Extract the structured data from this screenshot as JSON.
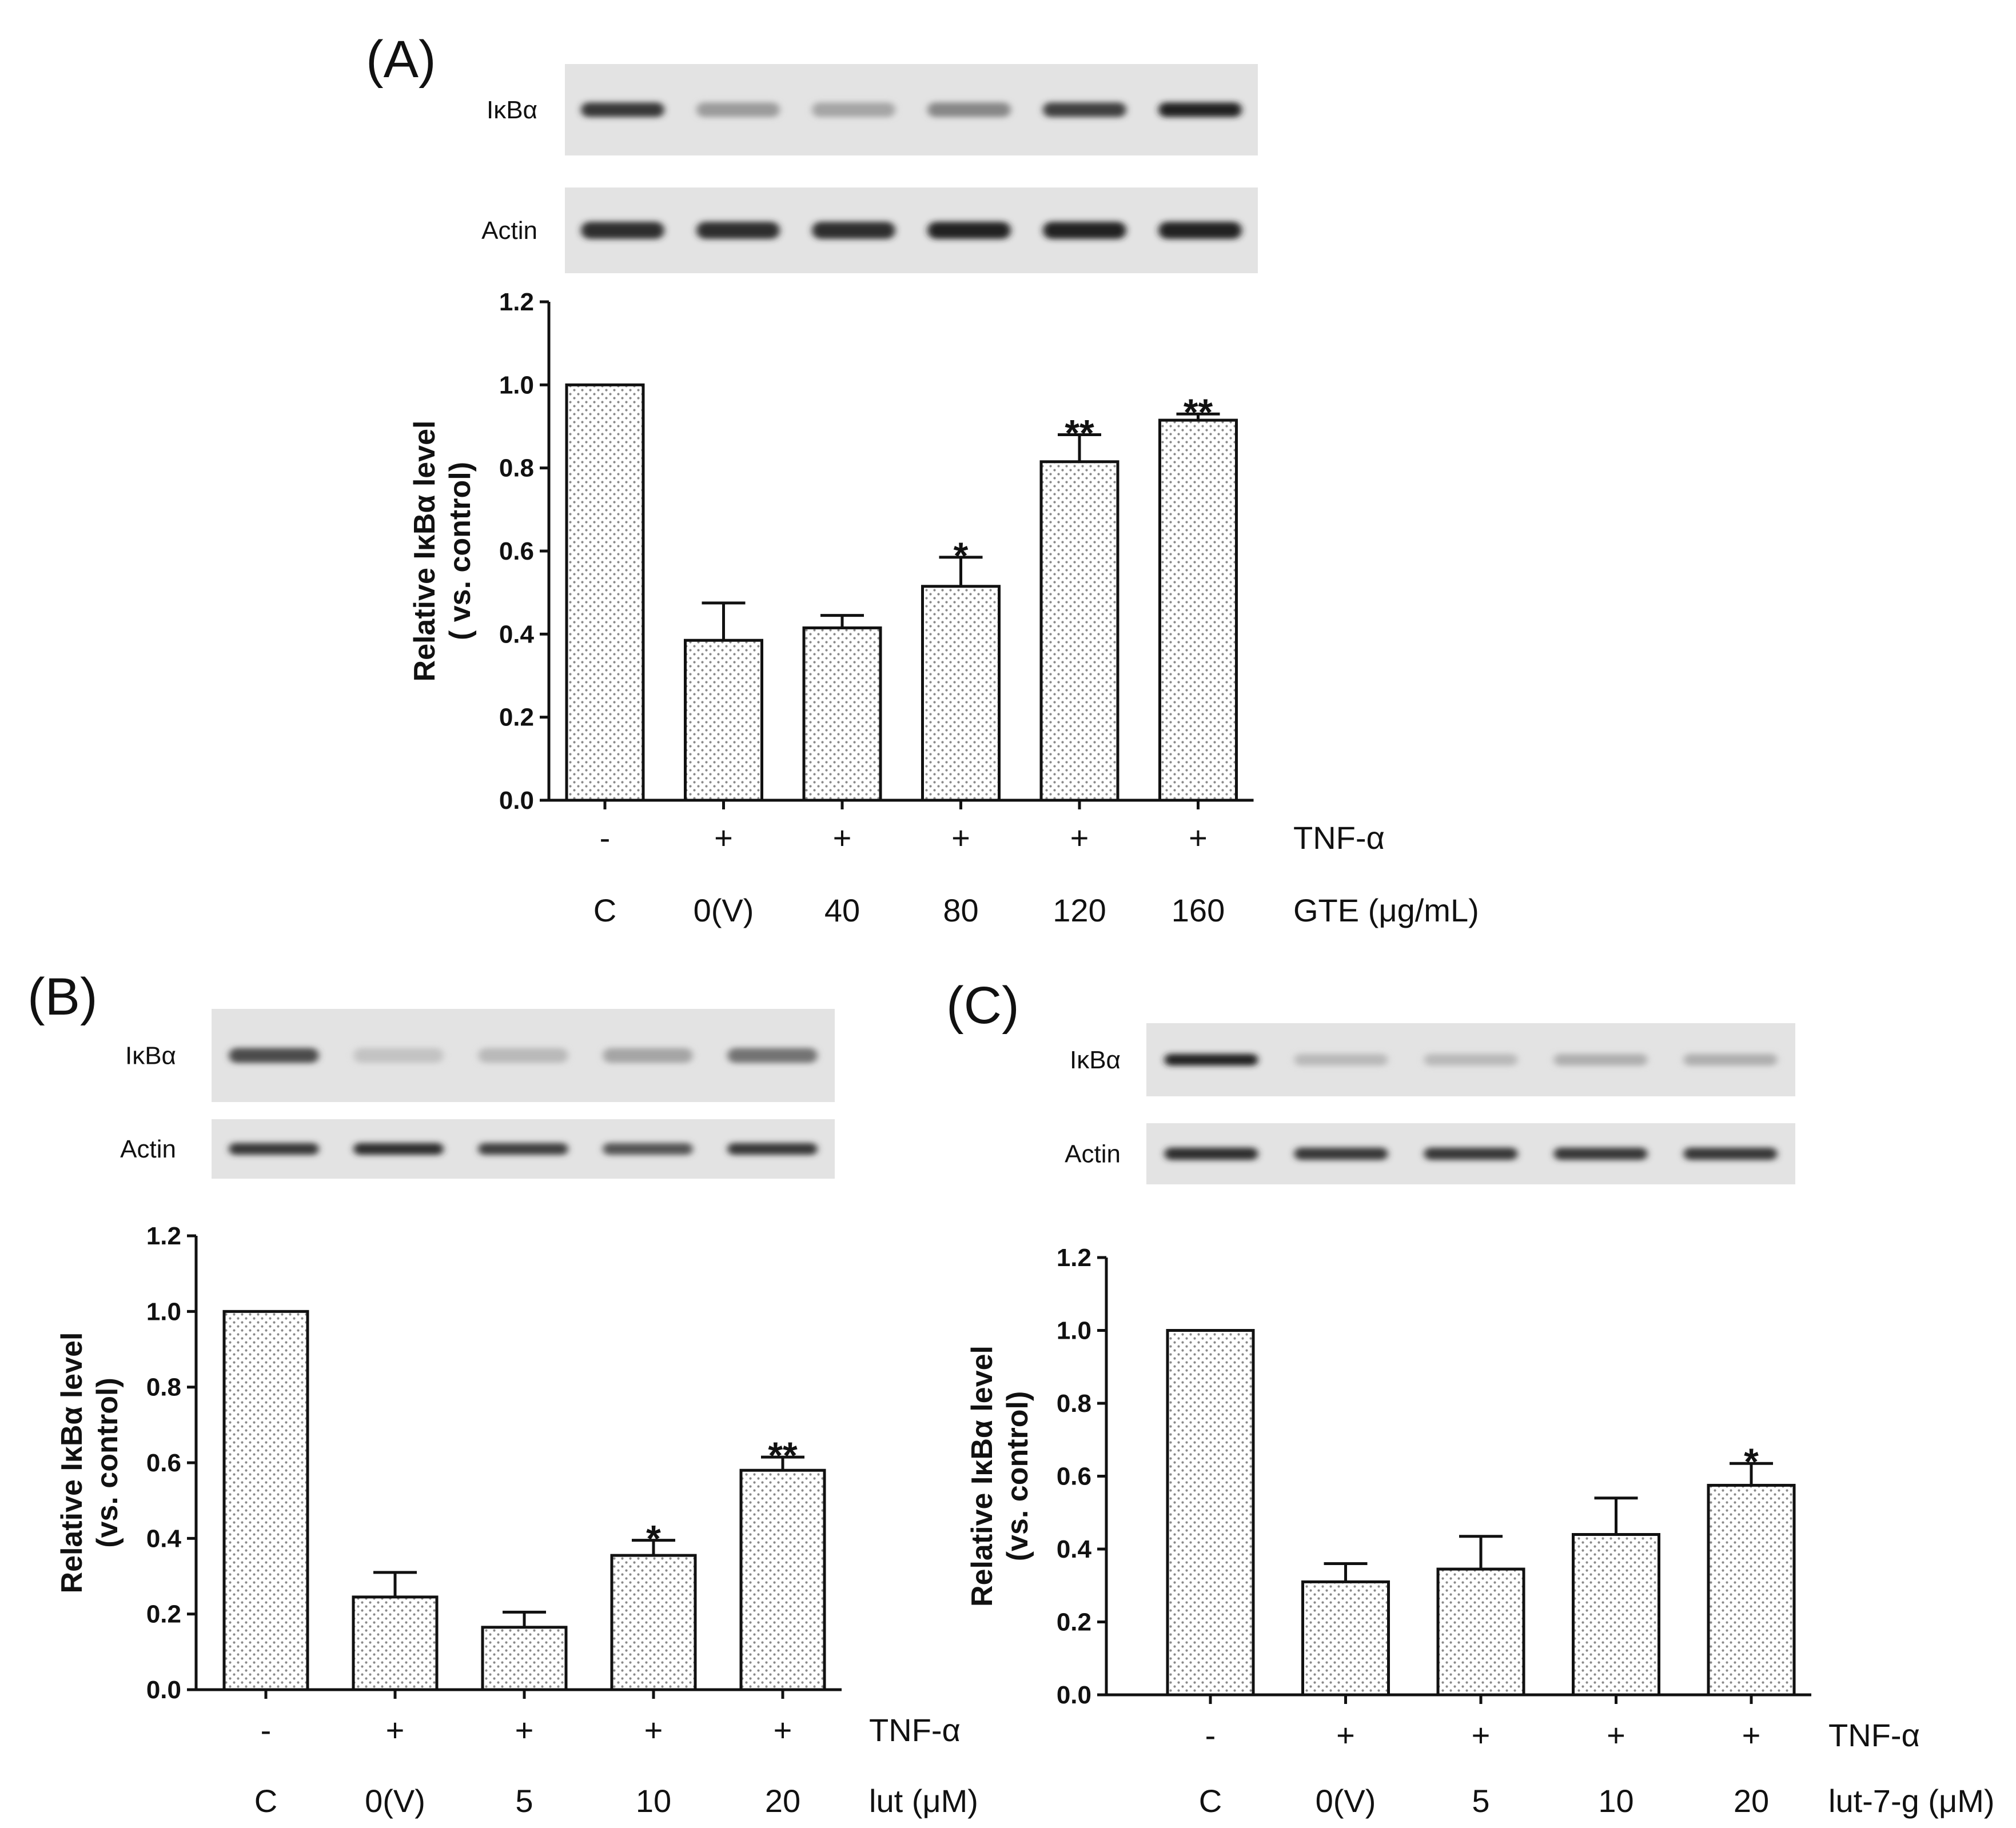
{
  "chart_data": [
    {
      "panel": "(A)",
      "type": "bar",
      "blots": {
        "top": "IκBα",
        "bottom": "Actin"
      },
      "ylabel_line1": "Relative IκBα level",
      "ylabel_line2": "( vs. control)",
      "ylim": [
        0,
        1.2
      ],
      "yticks": [
        "0.0",
        "0.2",
        "0.4",
        "0.6",
        "0.8",
        "1.0",
        "1.2"
      ],
      "tnf_label": "TNF-α",
      "tnf_row": [
        "-",
        "+",
        "+",
        "+",
        "+",
        "+"
      ],
      "treatment_label": "GTE (μg/mL)",
      "categories": [
        "C",
        "0(V)",
        "40",
        "80",
        "120",
        "160"
      ],
      "values": [
        1.0,
        0.385,
        0.415,
        0.515,
        0.815,
        0.915
      ],
      "errors": [
        0,
        0.09,
        0.03,
        0.07,
        0.065,
        0.015
      ],
      "significance": [
        "",
        "",
        "",
        "*",
        "**",
        "**"
      ],
      "blot_intensity_top": [
        0.85,
        0.35,
        0.3,
        0.45,
        0.8,
        0.95
      ],
      "blot_intensity_bottom": [
        0.9,
        0.9,
        0.9,
        0.95,
        0.95,
        0.95
      ]
    },
    {
      "panel": "(B)",
      "type": "bar",
      "blots": {
        "top": "IκBα",
        "bottom": "Actin"
      },
      "ylabel_line1": "Relative IκBα level",
      "ylabel_line2": "(vs. control)",
      "ylim": [
        0,
        1.2
      ],
      "yticks": [
        "0.0",
        "0.2",
        "0.4",
        "0.6",
        "0.8",
        "1.0",
        "1.2"
      ],
      "tnf_label": "TNF-α",
      "tnf_row": [
        "-",
        "+",
        "+",
        "+",
        "+"
      ],
      "treatment_label": "lut (μM)",
      "categories": [
        "C",
        "0(V)",
        "5",
        "10",
        "20"
      ],
      "values": [
        1.0,
        0.245,
        0.165,
        0.355,
        0.58
      ],
      "errors": [
        0,
        0.065,
        0.04,
        0.04,
        0.035
      ],
      "significance": [
        "",
        "",
        "",
        "*",
        "**"
      ],
      "blot_intensity_top": [
        0.75,
        0.15,
        0.2,
        0.3,
        0.55
      ],
      "blot_intensity_bottom": [
        0.85,
        0.9,
        0.8,
        0.7,
        0.85
      ]
    },
    {
      "panel": "(C)",
      "type": "bar",
      "blots": {
        "top": "IκBα",
        "bottom": "Actin"
      },
      "ylabel_line1": "Relative IκBα level",
      "ylabel_line2": "(vs. control)",
      "ylim": [
        0,
        1.2
      ],
      "yticks": [
        "0.0",
        "0.2",
        "0.4",
        "0.6",
        "0.8",
        "1.0",
        "1.2"
      ],
      "tnf_label": "TNF-α",
      "tnf_row": [
        "-",
        "+",
        "+",
        "+",
        "+"
      ],
      "treatment_label": "lut-7-g (μM)",
      "categories": [
        "C",
        "0(V)",
        "5",
        "10",
        "20"
      ],
      "values": [
        1.0,
        0.31,
        0.345,
        0.44,
        0.575
      ],
      "errors": [
        0,
        0.05,
        0.09,
        0.1,
        0.06
      ],
      "significance": [
        "",
        "",
        "",
        "",
        "*"
      ],
      "blot_intensity_top": [
        0.95,
        0.2,
        0.2,
        0.25,
        0.25
      ],
      "blot_intensity_bottom": [
        0.9,
        0.85,
        0.85,
        0.85,
        0.85
      ]
    }
  ]
}
